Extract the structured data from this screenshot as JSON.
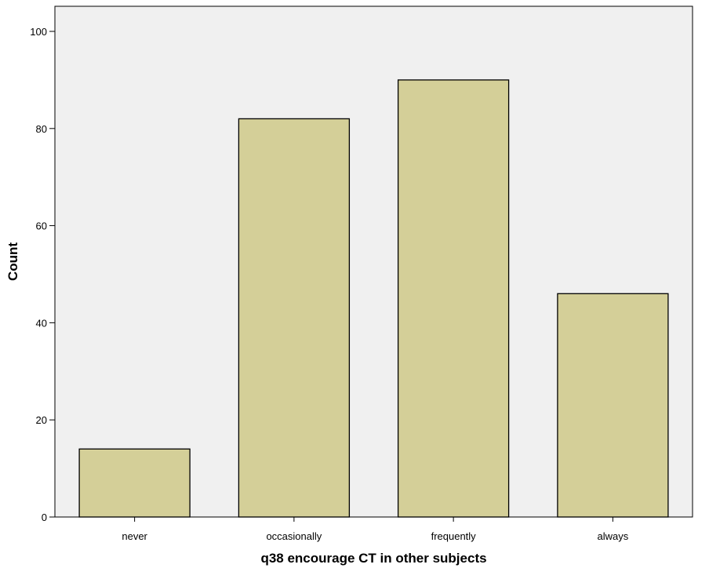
{
  "chart_data": {
    "type": "bar",
    "title": "",
    "xlabel": "q38 encourage CT in other subjects",
    "ylabel": "Count",
    "categories": [
      "never",
      "occasionally",
      "frequently",
      "always"
    ],
    "values": [
      14,
      82,
      90,
      46
    ],
    "ylim": [
      0,
      100
    ],
    "yticks": [
      "0",
      "20",
      "40",
      "60",
      "80",
      "100"
    ],
    "grid": false,
    "legend": "none",
    "colors": {
      "plot_background": "#f0f0f0",
      "bar_fill": "#d4cf98",
      "bar_stroke": "#000000"
    }
  }
}
